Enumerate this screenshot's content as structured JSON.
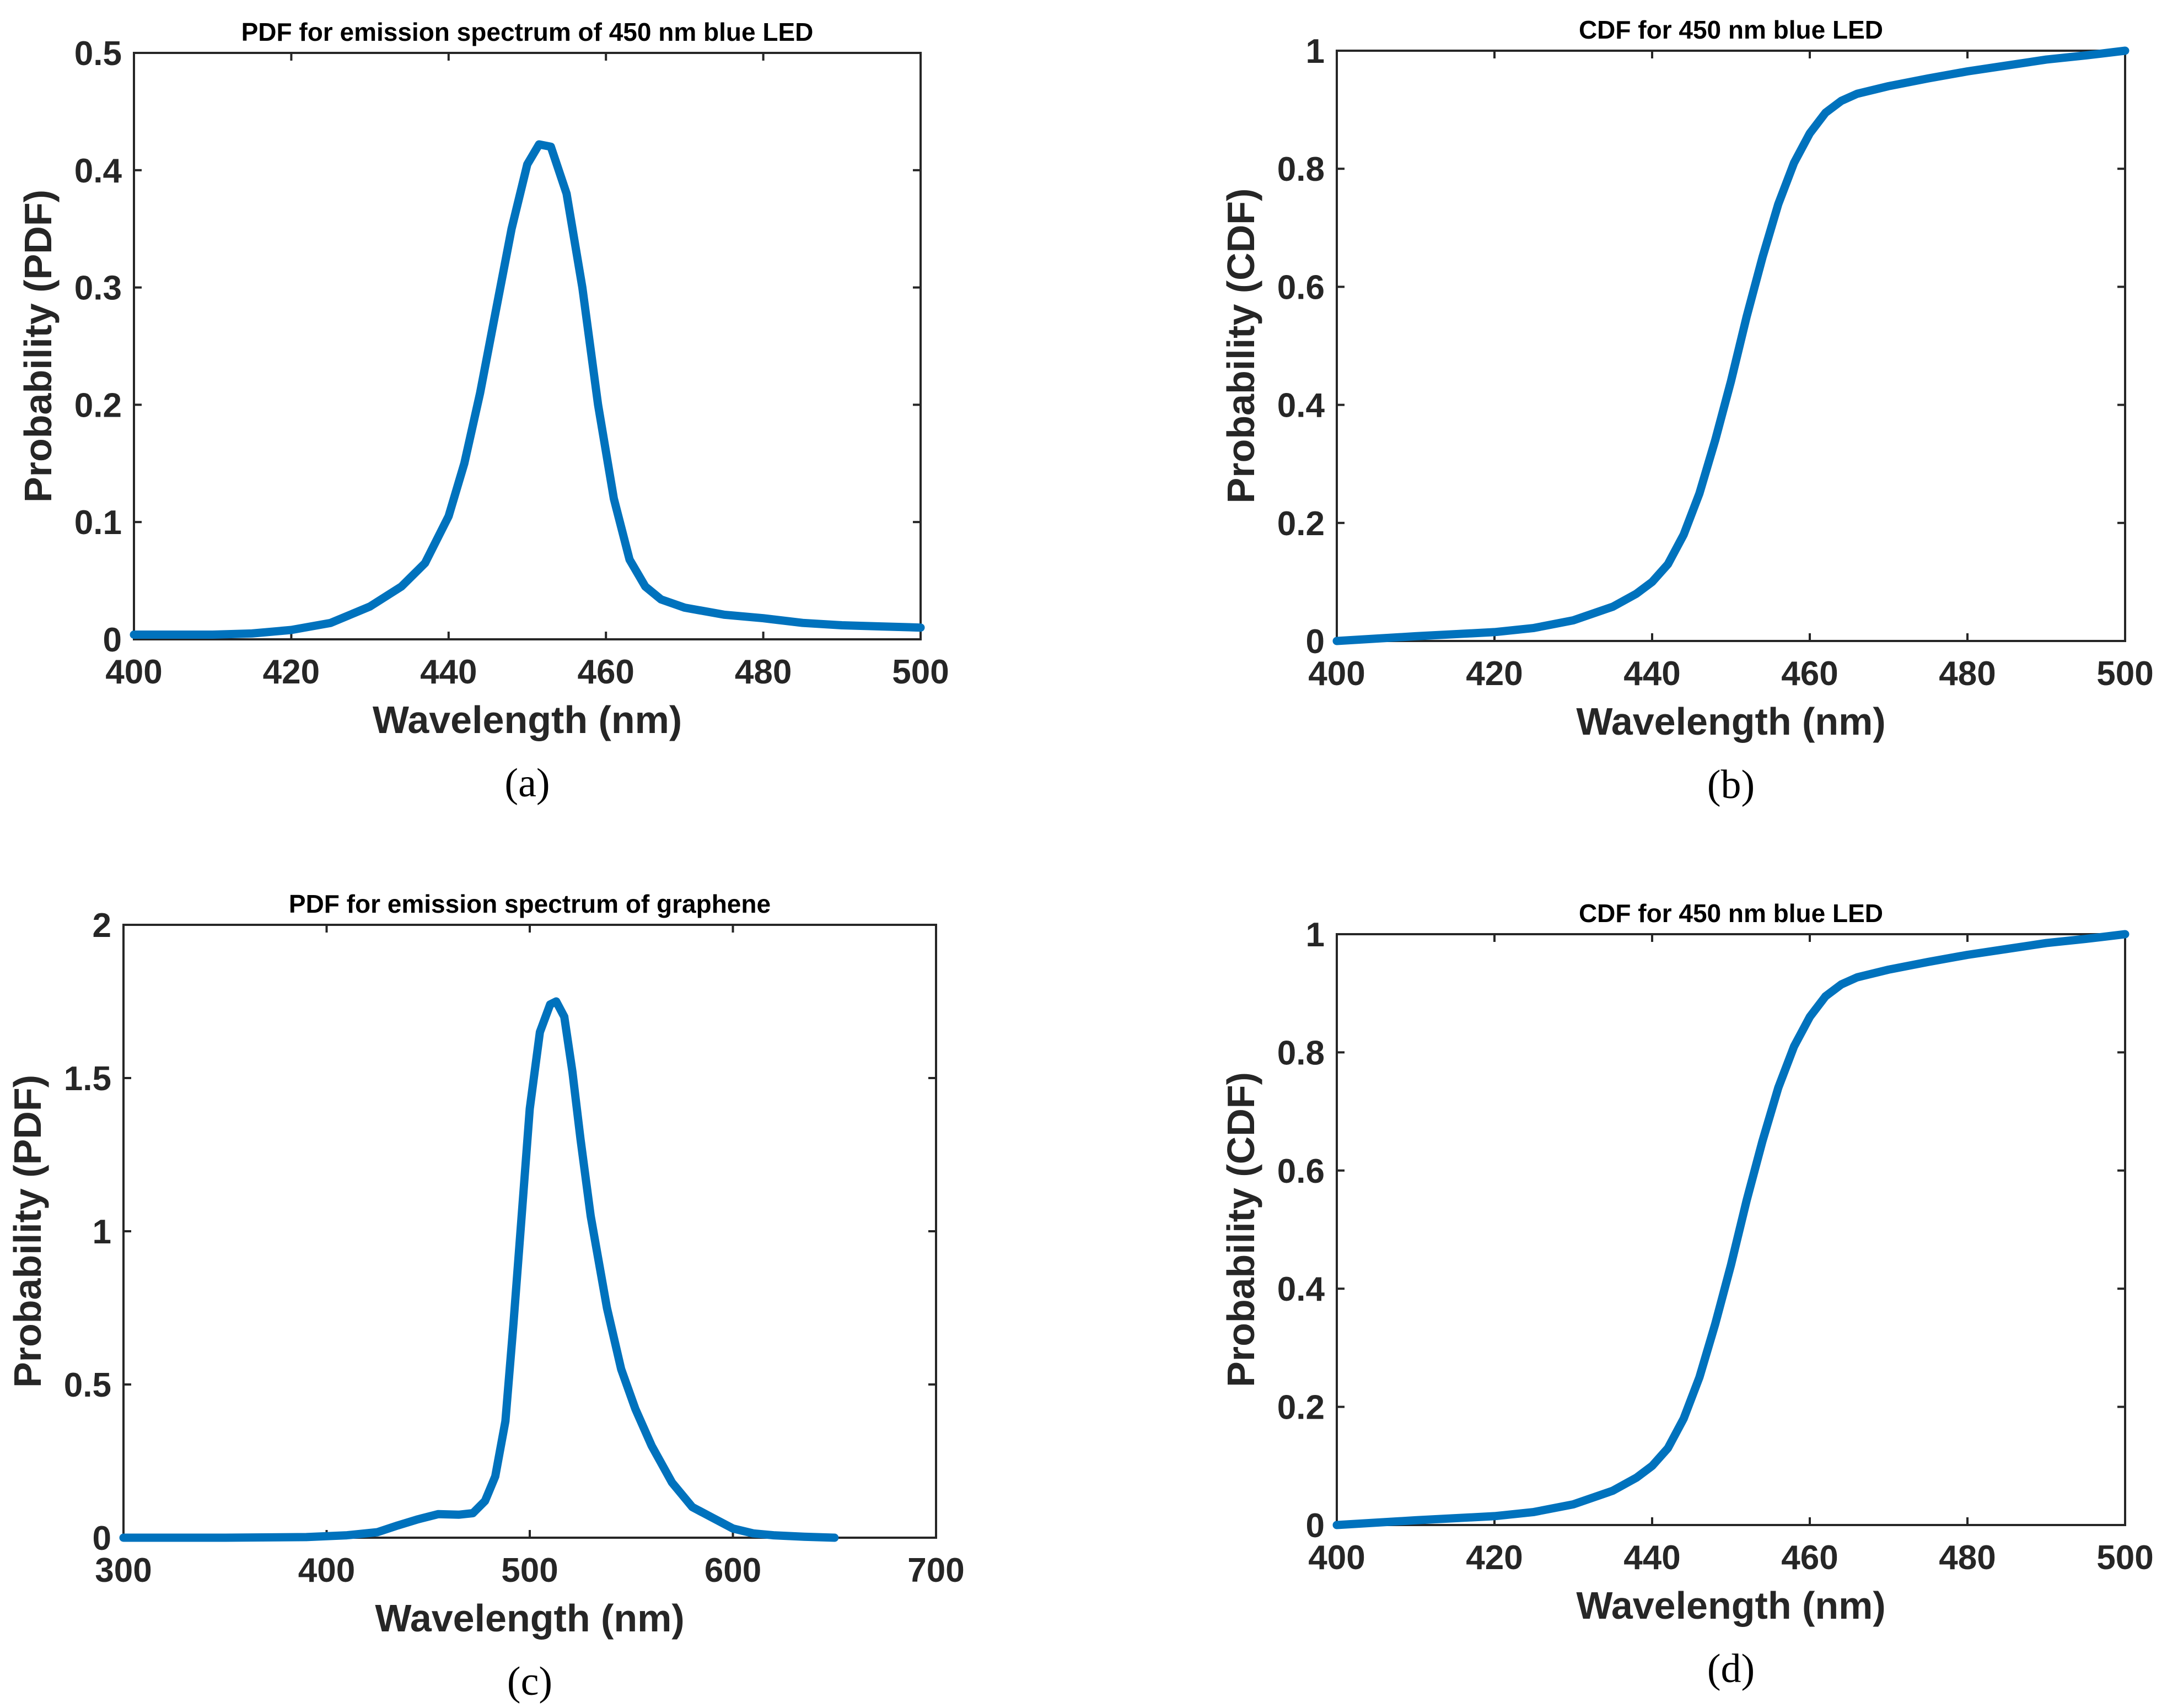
{
  "colors": {
    "series": "#0072BD",
    "axes": "#262626",
    "background": "#ffffff"
  },
  "chart_data": [
    {
      "id": "a",
      "type": "line",
      "title": "PDF for emission spectrum of 450 nm blue LED",
      "xlabel": "Wavelength (nm)",
      "ylabel": "Probability (PDF)",
      "panel_label": "(a)",
      "xlim": [
        400,
        500
      ],
      "ylim": [
        0,
        0.5
      ],
      "xticks": [
        400,
        420,
        440,
        460,
        480,
        500
      ],
      "yticks": [
        0,
        0.1,
        0.2,
        0.3,
        0.4,
        0.5
      ],
      "xtick_labels": [
        "400",
        "420",
        "440",
        "460",
        "480",
        "500"
      ],
      "ytick_labels": [
        "0",
        "0.1",
        "0.2",
        "0.3",
        "0.4",
        "0.5"
      ],
      "series": [
        {
          "name": "PDF",
          "x": [
            400,
            405,
            410,
            415,
            420,
            425,
            430,
            434,
            437,
            440,
            442,
            444,
            446,
            448,
            450,
            451.5,
            453,
            455,
            457,
            459,
            461,
            463,
            465,
            467,
            470,
            475,
            480,
            485,
            490,
            495,
            500
          ],
          "y": [
            0.004,
            0.004,
            0.004,
            0.005,
            0.008,
            0.014,
            0.028,
            0.045,
            0.065,
            0.105,
            0.15,
            0.21,
            0.28,
            0.35,
            0.405,
            0.422,
            0.42,
            0.38,
            0.3,
            0.2,
            0.12,
            0.068,
            0.045,
            0.034,
            0.027,
            0.021,
            0.018,
            0.014,
            0.012,
            0.011,
            0.01
          ]
        }
      ]
    },
    {
      "id": "b",
      "type": "line",
      "title": "CDF for 450 nm blue LED",
      "xlabel": "Wavelength (nm)",
      "ylabel": "Probability (CDF)",
      "panel_label": "(b)",
      "xlim": [
        400,
        500
      ],
      "ylim": [
        0,
        1
      ],
      "xticks": [
        400,
        420,
        440,
        460,
        480,
        500
      ],
      "yticks": [
        0,
        0.2,
        0.4,
        0.6,
        0.8,
        1
      ],
      "xtick_labels": [
        "400",
        "420",
        "440",
        "460",
        "480",
        "500"
      ],
      "ytick_labels": [
        "0",
        "0.2",
        "0.4",
        "0.6",
        "0.8",
        "1"
      ],
      "series": [
        {
          "name": "CDF",
          "x": [
            400,
            410,
            420,
            425,
            430,
            435,
            438,
            440,
            442,
            444,
            446,
            448,
            450,
            452,
            454,
            456,
            458,
            460,
            462,
            464,
            466,
            470,
            475,
            480,
            485,
            490,
            495,
            500
          ],
          "y": [
            0.0,
            0.008,
            0.015,
            0.022,
            0.035,
            0.058,
            0.08,
            0.1,
            0.13,
            0.18,
            0.25,
            0.34,
            0.44,
            0.55,
            0.65,
            0.74,
            0.81,
            0.86,
            0.895,
            0.915,
            0.927,
            0.94,
            0.953,
            0.965,
            0.975,
            0.985,
            0.992,
            1.0
          ]
        }
      ]
    },
    {
      "id": "c",
      "type": "line",
      "title": "PDF for emission spectrum of graphene",
      "xlabel": "Wavelength (nm)",
      "ylabel": "Probability (PDF)",
      "panel_label": "(c)",
      "xlim": [
        300,
        700
      ],
      "ylim": [
        0,
        2
      ],
      "xticks": [
        300,
        400,
        500,
        600,
        700
      ],
      "yticks": [
        0,
        0.5,
        1,
        1.5,
        2
      ],
      "xtick_labels": [
        "300",
        "400",
        "500",
        "600",
        "700"
      ],
      "ytick_labels": [
        "0",
        "0.5",
        "1",
        "1.5",
        "2"
      ],
      "series": [
        {
          "name": "PDF",
          "x": [
            300,
            350,
            390,
            410,
            425,
            435,
            445,
            455,
            465,
            472,
            478,
            483,
            488,
            492,
            496,
            500,
            505,
            510,
            513,
            517,
            521,
            525,
            530,
            538,
            545,
            552,
            560,
            570,
            580,
            590,
            600,
            610,
            620,
            635,
            650
          ],
          "y": [
            0.0,
            0.0,
            0.002,
            0.008,
            0.018,
            0.04,
            0.06,
            0.077,
            0.075,
            0.08,
            0.12,
            0.2,
            0.38,
            0.7,
            1.05,
            1.4,
            1.65,
            1.74,
            1.75,
            1.7,
            1.52,
            1.3,
            1.05,
            0.75,
            0.55,
            0.42,
            0.3,
            0.18,
            0.1,
            0.065,
            0.03,
            0.014,
            0.008,
            0.003,
            0.0
          ]
        }
      ]
    },
    {
      "id": "d",
      "type": "line",
      "title": "CDF for 450 nm blue LED",
      "xlabel": "Wavelength (nm)",
      "ylabel": "Probability (CDF)",
      "panel_label": "(d)",
      "xlim": [
        400,
        500
      ],
      "ylim": [
        0,
        1
      ],
      "xticks": [
        400,
        420,
        440,
        460,
        480,
        500
      ],
      "yticks": [
        0,
        0.2,
        0.4,
        0.6,
        0.8,
        1
      ],
      "xtick_labels": [
        "400",
        "420",
        "440",
        "460",
        "480",
        "500"
      ],
      "ytick_labels": [
        "0",
        "0.2",
        "0.4",
        "0.6",
        "0.8",
        "1"
      ],
      "series": [
        {
          "name": "CDF",
          "x": [
            400,
            410,
            420,
            425,
            430,
            435,
            438,
            440,
            442,
            444,
            446,
            448,
            450,
            452,
            454,
            456,
            458,
            460,
            462,
            464,
            466,
            470,
            475,
            480,
            485,
            490,
            495,
            500
          ],
          "y": [
            0.0,
            0.008,
            0.015,
            0.022,
            0.035,
            0.058,
            0.08,
            0.1,
            0.13,
            0.18,
            0.25,
            0.34,
            0.44,
            0.55,
            0.65,
            0.74,
            0.81,
            0.86,
            0.895,
            0.915,
            0.927,
            0.94,
            0.953,
            0.965,
            0.975,
            0.985,
            0.992,
            1.0
          ]
        }
      ]
    }
  ]
}
